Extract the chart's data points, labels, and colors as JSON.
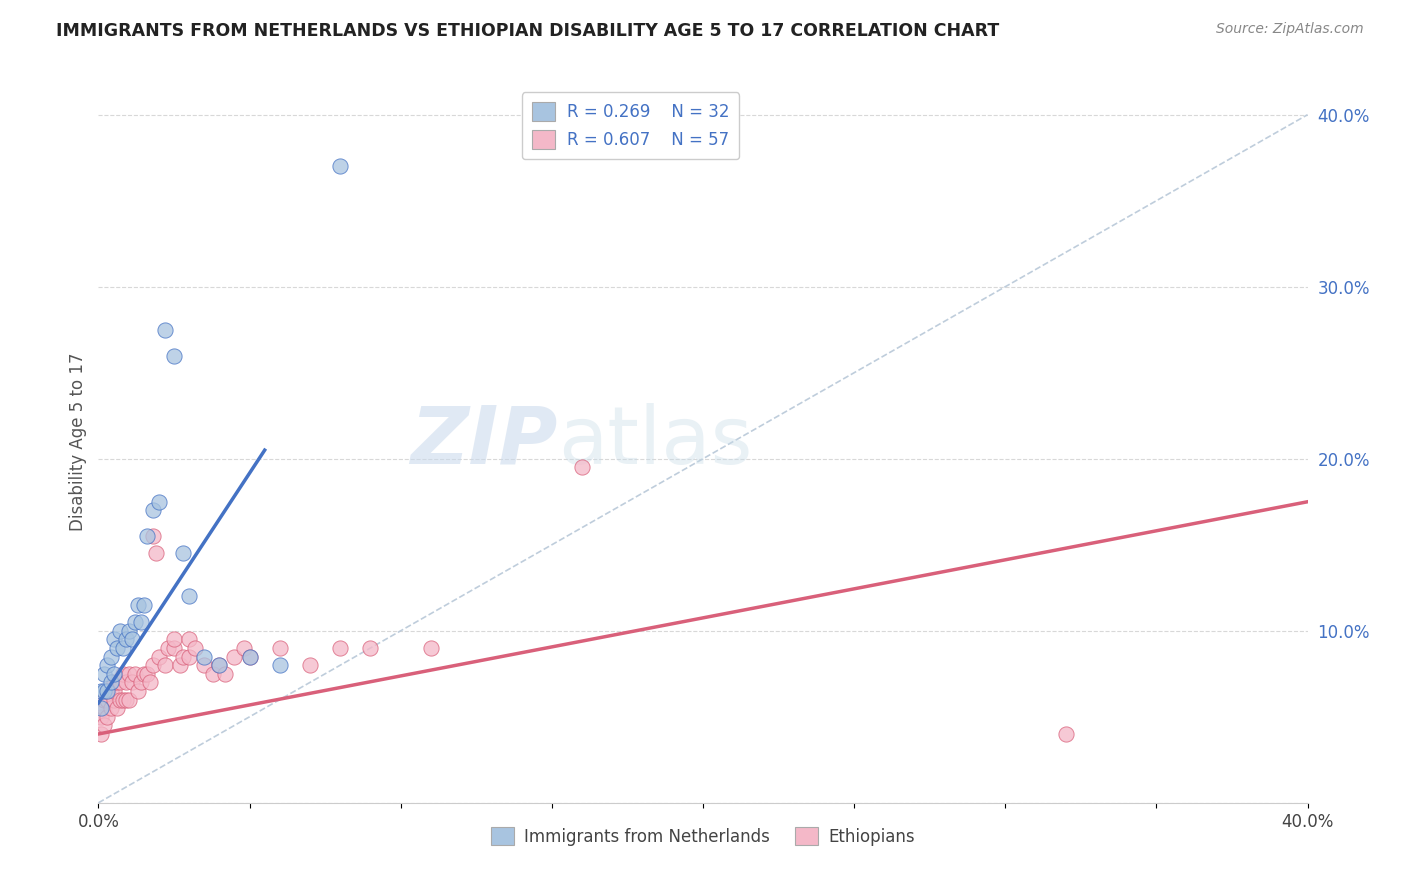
{
  "title": "IMMIGRANTS FROM NETHERLANDS VS ETHIOPIAN DISABILITY AGE 5 TO 17 CORRELATION CHART",
  "source": "Source: ZipAtlas.com",
  "ylabel": "Disability Age 5 to 17",
  "xlim": [
    0.0,
    0.4
  ],
  "ylim": [
    0.0,
    0.42
  ],
  "color_netherlands": "#a8c4e0",
  "color_ethiopians": "#f4b8c8",
  "color_line_netherlands": "#4472c4",
  "color_line_ethiopians": "#d9607a",
  "color_diag_line": "#b8c8d8",
  "color_grid": "#d8d8d8",
  "color_legend_text": "#4472c4",
  "watermark_zip": "ZIP",
  "watermark_atlas": "atlas",
  "nl_trend_x0": 0.0,
  "nl_trend_y0": 0.058,
  "nl_trend_x1": 0.055,
  "nl_trend_y1": 0.205,
  "eth_trend_x0": 0.0,
  "eth_trend_y0": 0.04,
  "eth_trend_x1": 0.4,
  "eth_trend_y1": 0.175,
  "netherlands_scatter_x": [
    0.001,
    0.001,
    0.002,
    0.002,
    0.003,
    0.003,
    0.004,
    0.004,
    0.005,
    0.005,
    0.006,
    0.007,
    0.008,
    0.009,
    0.01,
    0.011,
    0.012,
    0.013,
    0.014,
    0.015,
    0.016,
    0.018,
    0.02,
    0.022,
    0.025,
    0.028,
    0.03,
    0.035,
    0.04,
    0.05,
    0.06,
    0.08
  ],
  "netherlands_scatter_y": [
    0.055,
    0.065,
    0.065,
    0.075,
    0.065,
    0.08,
    0.07,
    0.085,
    0.075,
    0.095,
    0.09,
    0.1,
    0.09,
    0.095,
    0.1,
    0.095,
    0.105,
    0.115,
    0.105,
    0.115,
    0.155,
    0.17,
    0.175,
    0.275,
    0.26,
    0.145,
    0.12,
    0.085,
    0.08,
    0.085,
    0.08,
    0.37
  ],
  "ethiopians_scatter_x": [
    0.001,
    0.001,
    0.002,
    0.002,
    0.002,
    0.003,
    0.003,
    0.003,
    0.004,
    0.004,
    0.005,
    0.005,
    0.005,
    0.006,
    0.006,
    0.007,
    0.007,
    0.008,
    0.008,
    0.009,
    0.009,
    0.01,
    0.01,
    0.011,
    0.012,
    0.013,
    0.014,
    0.015,
    0.016,
    0.017,
    0.018,
    0.018,
    0.019,
    0.02,
    0.022,
    0.023,
    0.025,
    0.025,
    0.027,
    0.028,
    0.03,
    0.03,
    0.032,
    0.035,
    0.038,
    0.04,
    0.042,
    0.045,
    0.048,
    0.05,
    0.06,
    0.07,
    0.08,
    0.09,
    0.11,
    0.16,
    0.32
  ],
  "ethiopians_scatter_y": [
    0.04,
    0.05,
    0.045,
    0.055,
    0.06,
    0.05,
    0.06,
    0.065,
    0.055,
    0.065,
    0.06,
    0.065,
    0.07,
    0.055,
    0.07,
    0.06,
    0.07,
    0.06,
    0.075,
    0.06,
    0.07,
    0.06,
    0.075,
    0.07,
    0.075,
    0.065,
    0.07,
    0.075,
    0.075,
    0.07,
    0.08,
    0.155,
    0.145,
    0.085,
    0.08,
    0.09,
    0.09,
    0.095,
    0.08,
    0.085,
    0.085,
    0.095,
    0.09,
    0.08,
    0.075,
    0.08,
    0.075,
    0.085,
    0.09,
    0.085,
    0.09,
    0.08,
    0.09,
    0.09,
    0.09,
    0.195,
    0.04
  ],
  "ytick_positions": [
    0.0,
    0.1,
    0.2,
    0.3,
    0.4
  ],
  "ytick_labels": [
    "",
    "10.0%",
    "20.0%",
    "30.0%",
    "40.0%"
  ],
  "xtick_positions": [
    0.0,
    0.05,
    0.1,
    0.15,
    0.2,
    0.25,
    0.3,
    0.35,
    0.4
  ],
  "xtick_labels": [
    "0.0%",
    "",
    "",
    "",
    "",
    "",
    "",
    "",
    "40.0%"
  ]
}
